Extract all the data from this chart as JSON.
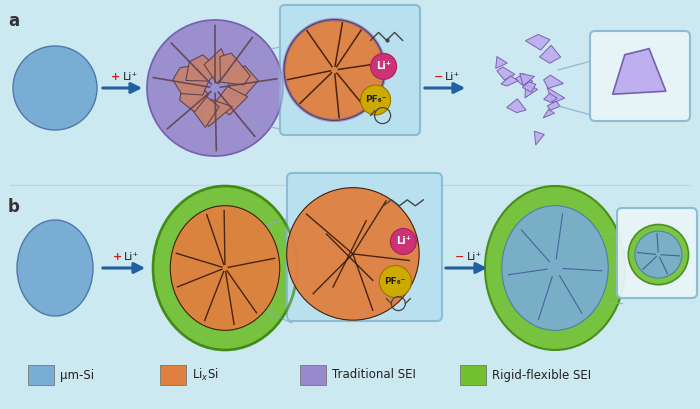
{
  "bg_color": "#cce8f0",
  "blue_si": "#7aadd4",
  "blue_si_light": "#aaccee",
  "blue_si_dark": "#4a7aaa",
  "orange_lixi": "#e08040",
  "orange_dark": "#c06020",
  "purple_sei": "#9888cc",
  "purple_sei_light": "#bbaaee",
  "purple_sei_dark": "#7055aa",
  "green_sei": "#70c030",
  "green_sei_dark": "#408810",
  "green_sei_light": "#a0e060",
  "arrow_color": "#2060a0",
  "crack_color": "#3a1a08",
  "zoom_bg": "#b8e0ee",
  "li_plus_color": "#cc2020",
  "li_ion_color": "#cc3377",
  "pf6_color": "#ccaa00",
  "title_a": "a",
  "title_b": "b",
  "legend_labels": [
    "μm-Si",
    "LiₓSi",
    "Traditional SEI",
    "Rigid-flexible SEI"
  ],
  "legend_colors": [
    "#7aadd4",
    "#e08040",
    "#9888cc",
    "#70c030"
  ]
}
